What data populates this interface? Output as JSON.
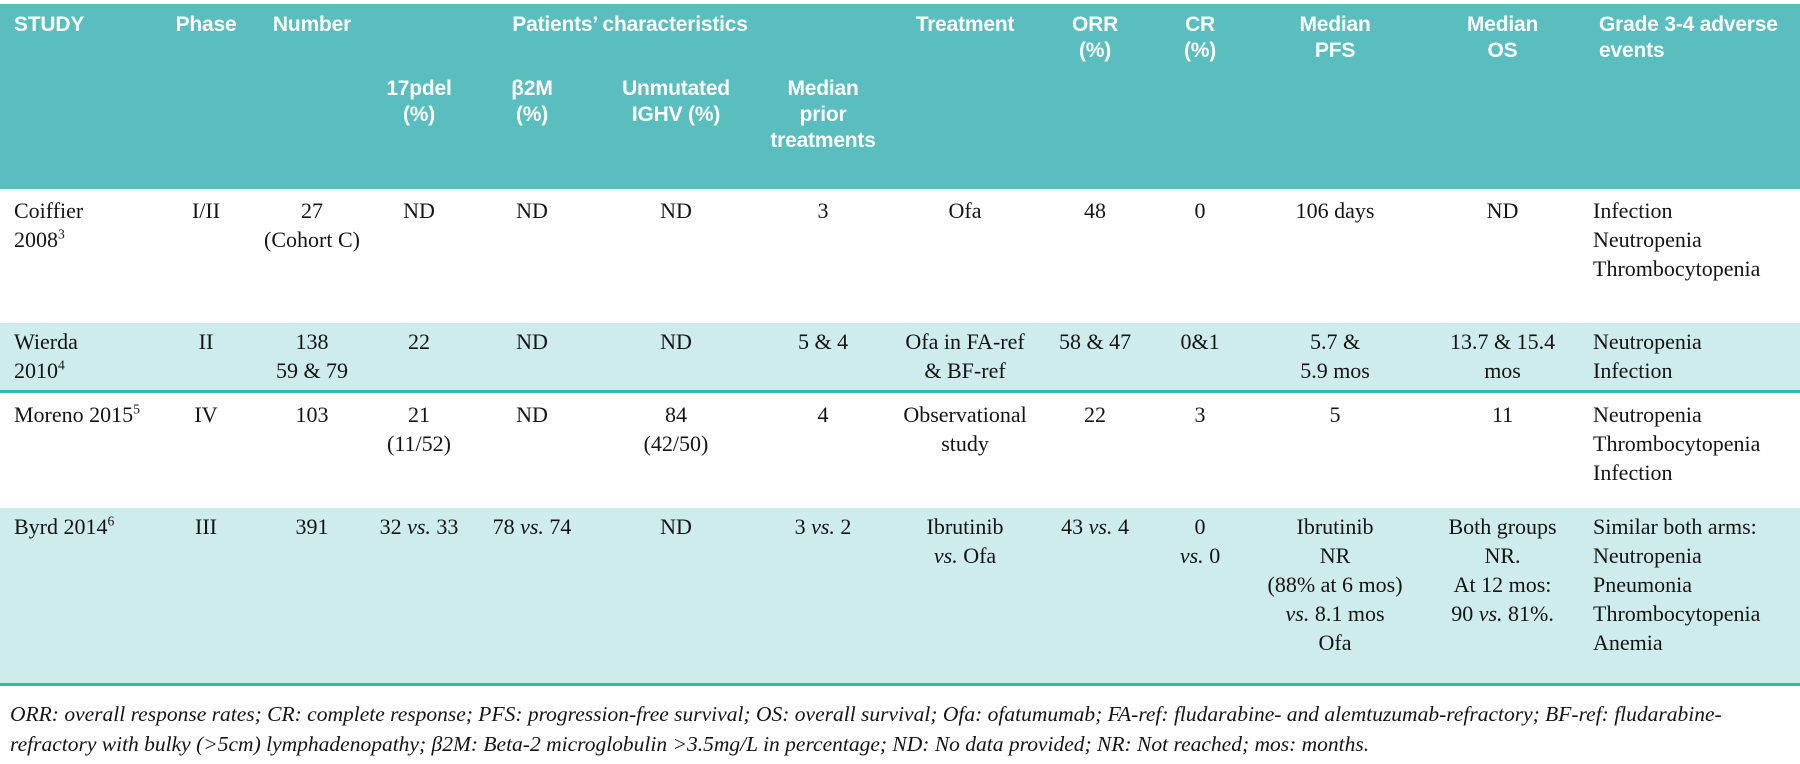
{
  "colors": {
    "header_bg": "#5abdbe",
    "row_alt_bg": "#cdeceb",
    "divider": "#3fafb1",
    "header_text": "#ffffff",
    "body_text": "#141414"
  },
  "table": {
    "header": {
      "study": "STUDY",
      "phase": "Phase",
      "number": "Number",
      "patients_characteristics": "Patients’ characteristics",
      "sub_17pdel": "17pdel\n(%)",
      "sub_b2m": "β2M\n(%)",
      "sub_ighv": "Unmutated\nIGHV (%)",
      "sub_prior": "Median\nprior\ntreatments",
      "treatment": "Treatment",
      "orr": "ORR\n(%)",
      "cr": "CR\n(%)",
      "median_pfs": "Median\nPFS",
      "median_os": "Median\nOS",
      "adverse": "Grade 3-4 adverse\nevents"
    },
    "rows": [
      {
        "study": "Coiffier\n2008^3",
        "phase": "I/II",
        "number": "27\n(Cohort C)",
        "del17p": "ND",
        "b2m": "ND",
        "ighv": "ND",
        "prior": "3",
        "treatment": "Ofa",
        "orr": "48",
        "cr": "0",
        "pfs": "106 days",
        "os": "ND",
        "adverse": "Infection\nNeutropenia\nThrombocytopenia"
      },
      {
        "study": "Wierda\n2010^4",
        "phase": "II",
        "number": "138\n59 & 79",
        "del17p": "22",
        "b2m": "ND",
        "ighv": "ND",
        "prior": "5 & 4",
        "treatment": "Ofa in FA-ref\n& BF-ref",
        "orr": "58 & 47",
        "cr": "0&1",
        "pfs": "5.7 &\n5.9 mos",
        "os": "13.7 & 15.4\nmos",
        "adverse": "Neutropenia\nInfection"
      },
      {
        "study": "Moreno 2015^5",
        "phase": "IV",
        "number": "103",
        "del17p": "21\n(11/52)",
        "b2m": "ND",
        "ighv": "84\n(42/50)",
        "prior": "4",
        "treatment": "Observational\nstudy",
        "orr": "22",
        "cr": "3",
        "pfs": "5",
        "os": "11",
        "adverse": "Neutropenia\nThrombocytopenia\nInfection"
      },
      {
        "study": "Byrd 2014^6",
        "phase": "III",
        "number": "391",
        "del17p": "32 vs. 33",
        "b2m": "78 vs. 74",
        "ighv": "ND",
        "prior": "3 vs. 2",
        "treatment": "Ibrutinib\nvs. Ofa",
        "orr": "43 vs. 4",
        "cr": "0\nvs. 0",
        "pfs": "Ibrutinib\nNR\n(88% at 6 mos)\nvs. 8.1 mos\nOfa",
        "os": "Both groups\nNR.\nAt 12 mos:\n90 vs. 81%.",
        "adverse": "Similar both arms:\nNeutropenia\nPneumonia\nThrombocytopenia\nAnemia"
      }
    ],
    "footnote": "ORR: overall response rates; CR: complete response; PFS: progression-free survival; OS: overall survival; Ofa: ofatumumab; FA-ref: fludarabine- and alemtuzumab-refractory; BF-ref: fludarabine-refractory with bulky (>5cm) lymphadenopathy; β2M:  Beta-2 microglobulin >3.5mg/L in percentage; ND:  No data provided;  NR:  Not reached;  mos: months."
  }
}
